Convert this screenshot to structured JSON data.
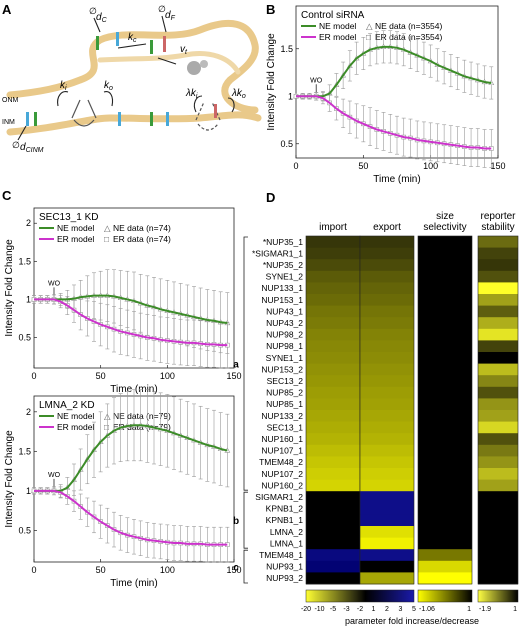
{
  "panel_letters": {
    "a": "A",
    "b": "B",
    "c": "C",
    "d": "D"
  },
  "schematic": {
    "labels": {
      "dc": "d",
      "dc_sub": "C",
      "df": "d",
      "df_sub": "F",
      "kc": "k",
      "kc_sub": "c",
      "vt": "v",
      "vt_sub": "t",
      "ki": "k",
      "ki_sub": "i",
      "ko": "k",
      "ko_sub": "o",
      "lki": "λk",
      "lki_sub": "i",
      "lko": "λk",
      "lko_sub": "o",
      "dcinm": "d",
      "dcinm_sub": "CINM",
      "onm": "ONM",
      "inm": "INM",
      "null1": "∅",
      "null2": "∅",
      "null3": "∅"
    }
  },
  "colors": {
    "ne": "#3c8c28",
    "er": "#cc33cc",
    "data": "#999999"
  },
  "chart_data": [
    {
      "type": "line",
      "id": "B",
      "title": "Control siRNA",
      "xlabel": "Time (min)",
      "ylabel": "Intensity Fold Change",
      "xlim": [
        0,
        150
      ],
      "ylim": [
        0.35,
        1.95
      ],
      "xticks": [
        0,
        50,
        100,
        150
      ],
      "yticks": [
        0.5,
        1,
        1.5
      ],
      "wo_label": "WO",
      "wo_x": 15,
      "legend": [
        "NE model",
        "NE data (n=3554)",
        "ER model",
        "ER data (n=3554)"
      ],
      "x": [
        0,
        5,
        10,
        15,
        20,
        25,
        30,
        35,
        40,
        45,
        50,
        55,
        60,
        65,
        70,
        75,
        80,
        85,
        90,
        95,
        100,
        105,
        110,
        115,
        120,
        125,
        130,
        135,
        140,
        145
      ],
      "series": [
        {
          "name": "NE model",
          "values": [
            1.0,
            1.0,
            1.0,
            1.0,
            1.0,
            1.03,
            1.12,
            1.22,
            1.32,
            1.4,
            1.45,
            1.49,
            1.51,
            1.52,
            1.52,
            1.51,
            1.49,
            1.46,
            1.43,
            1.4,
            1.37,
            1.33,
            1.3,
            1.27,
            1.24,
            1.21,
            1.19,
            1.17,
            1.15,
            1.14
          ]
        },
        {
          "name": "ER model",
          "values": [
            1.0,
            1.0,
            1.0,
            1.0,
            0.98,
            0.93,
            0.87,
            0.82,
            0.78,
            0.74,
            0.71,
            0.68,
            0.65,
            0.63,
            0.61,
            0.59,
            0.57,
            0.56,
            0.54,
            0.53,
            0.52,
            0.51,
            0.5,
            0.49,
            0.48,
            0.47,
            0.46,
            0.46,
            0.45,
            0.45
          ]
        }
      ],
      "data_x": [
        0,
        5,
        10,
        15,
        20,
        25,
        30,
        35,
        40,
        45,
        50,
        55,
        60,
        65,
        70,
        75,
        80,
        85,
        90,
        95,
        100,
        105,
        110,
        115,
        120,
        125,
        130,
        135,
        140,
        145
      ],
      "ne_err": [
        0.02,
        0.03,
        0.03,
        0.04,
        0.05,
        0.09,
        0.12,
        0.14,
        0.16,
        0.17,
        0.17,
        0.17,
        0.17,
        0.17,
        0.17,
        0.17,
        0.17,
        0.17,
        0.17,
        0.17,
        0.17,
        0.17,
        0.17,
        0.17,
        0.17,
        0.17,
        0.17,
        0.17,
        0.17,
        0.17
      ],
      "er_err": [
        0.02,
        0.03,
        0.03,
        0.04,
        0.06,
        0.09,
        0.12,
        0.15,
        0.17,
        0.18,
        0.19,
        0.2,
        0.2,
        0.2,
        0.2,
        0.2,
        0.2,
        0.2,
        0.2,
        0.2,
        0.2,
        0.2,
        0.2,
        0.2,
        0.2,
        0.2,
        0.2,
        0.2,
        0.2,
        0.2
      ]
    },
    {
      "type": "line",
      "id": "C1",
      "title": "SEC13_1 KD",
      "xlabel": "Time (min)",
      "ylabel": "Intensity Fold Change",
      "xlim": [
        0,
        150
      ],
      "ylim": [
        0.1,
        2.2
      ],
      "xticks": [
        0,
        50,
        100,
        150
      ],
      "yticks": [
        0.5,
        1,
        1.5,
        2
      ],
      "wo_label": "WO",
      "wo_x": 15,
      "legend": [
        "NE model",
        "NE data (n=74)",
        "ER model",
        "ER data (n=74)"
      ],
      "x": [
        0,
        5,
        10,
        15,
        20,
        25,
        30,
        35,
        40,
        45,
        50,
        55,
        60,
        65,
        70,
        75,
        80,
        85,
        90,
        95,
        100,
        105,
        110,
        115,
        120,
        125,
        130,
        135,
        140,
        145
      ],
      "series": [
        {
          "name": "NE model",
          "values": [
            1.0,
            1.0,
            1.0,
            1.0,
            1.0,
            1.0,
            1.01,
            1.03,
            1.04,
            1.05,
            1.05,
            1.05,
            1.04,
            1.02,
            1.0,
            0.98,
            0.95,
            0.92,
            0.9,
            0.87,
            0.85,
            0.83,
            0.81,
            0.79,
            0.77,
            0.75,
            0.73,
            0.72,
            0.7,
            0.69
          ]
        },
        {
          "name": "ER model",
          "values": [
            1.0,
            1.0,
            1.0,
            1.0,
            0.97,
            0.92,
            0.86,
            0.8,
            0.75,
            0.71,
            0.67,
            0.64,
            0.61,
            0.58,
            0.56,
            0.54,
            0.52,
            0.5,
            0.49,
            0.47,
            0.46,
            0.45,
            0.44,
            0.43,
            0.43,
            0.42,
            0.41,
            0.41,
            0.4,
            0.4
          ]
        }
      ],
      "data_x": [
        0,
        5,
        10,
        15,
        20,
        25,
        30,
        35,
        40,
        45,
        50,
        55,
        60,
        65,
        70,
        75,
        80,
        85,
        90,
        95,
        100,
        105,
        110,
        115,
        120,
        125,
        130,
        135,
        140,
        145
      ],
      "ne_err": [
        0.05,
        0.05,
        0.05,
        0.06,
        0.08,
        0.12,
        0.18,
        0.22,
        0.27,
        0.3,
        0.32,
        0.34,
        0.35,
        0.36,
        0.37,
        0.38,
        0.38,
        0.39,
        0.39,
        0.4,
        0.4,
        0.4,
        0.4,
        0.4,
        0.4,
        0.4,
        0.4,
        0.4,
        0.4,
        0.4
      ],
      "er_err": [
        0.05,
        0.05,
        0.05,
        0.06,
        0.08,
        0.12,
        0.16,
        0.2,
        0.23,
        0.26,
        0.28,
        0.29,
        0.3,
        0.3,
        0.3,
        0.3,
        0.3,
        0.3,
        0.3,
        0.3,
        0.3,
        0.3,
        0.3,
        0.3,
        0.3,
        0.3,
        0.3,
        0.3,
        0.3,
        0.3
      ]
    },
    {
      "type": "line",
      "id": "C2",
      "title": "LMNA_2 KD",
      "xlabel": "Time (min)",
      "ylabel": "Intensity Fold Change",
      "xlim": [
        0,
        150
      ],
      "ylim": [
        0.1,
        2.2
      ],
      "xticks": [
        0,
        50,
        100,
        150
      ],
      "yticks": [
        0.5,
        1,
        1.5,
        2
      ],
      "wo_label": "WO",
      "wo_x": 15,
      "legend": [
        "NE model",
        "NE data (n=79)",
        "ER model",
        "ER data (n=79)"
      ],
      "x": [
        0,
        5,
        10,
        15,
        20,
        25,
        30,
        35,
        40,
        45,
        50,
        55,
        60,
        65,
        70,
        75,
        80,
        85,
        90,
        95,
        100,
        105,
        110,
        115,
        120,
        125,
        130,
        135,
        140,
        145
      ],
      "series": [
        {
          "name": "NE model",
          "values": [
            1.0,
            1.0,
            1.0,
            1.0,
            1.0,
            1.04,
            1.14,
            1.27,
            1.4,
            1.52,
            1.62,
            1.7,
            1.76,
            1.8,
            1.82,
            1.83,
            1.83,
            1.82,
            1.8,
            1.78,
            1.76,
            1.73,
            1.7,
            1.67,
            1.64,
            1.61,
            1.58,
            1.56,
            1.53,
            1.51
          ]
        },
        {
          "name": "ER model",
          "values": [
            1.0,
            1.0,
            1.0,
            1.0,
            0.98,
            0.93,
            0.87,
            0.8,
            0.73,
            0.67,
            0.61,
            0.56,
            0.51,
            0.47,
            0.44,
            0.42,
            0.4,
            0.38,
            0.37,
            0.36,
            0.35,
            0.34,
            0.34,
            0.33,
            0.33,
            0.33,
            0.32,
            0.32,
            0.32,
            0.32
          ]
        }
      ],
      "data_x": [
        0,
        5,
        10,
        15,
        20,
        25,
        30,
        35,
        40,
        45,
        50,
        55,
        60,
        65,
        70,
        75,
        80,
        85,
        90,
        95,
        100,
        105,
        110,
        115,
        120,
        125,
        130,
        135,
        140,
        145
      ],
      "ne_err": [
        0.04,
        0.04,
        0.04,
        0.05,
        0.08,
        0.13,
        0.2,
        0.26,
        0.31,
        0.35,
        0.38,
        0.4,
        0.42,
        0.43,
        0.44,
        0.45,
        0.45,
        0.46,
        0.46,
        0.46,
        0.46,
        0.46,
        0.46,
        0.46,
        0.46,
        0.46,
        0.46,
        0.46,
        0.46,
        0.46
      ],
      "er_err": [
        0.04,
        0.04,
        0.04,
        0.05,
        0.07,
        0.1,
        0.13,
        0.16,
        0.18,
        0.2,
        0.21,
        0.22,
        0.22,
        0.22,
        0.22,
        0.22,
        0.22,
        0.22,
        0.22,
        0.22,
        0.22,
        0.22,
        0.22,
        0.22,
        0.22,
        0.22,
        0.22,
        0.22,
        0.22,
        0.22
      ]
    },
    {
      "type": "heatmap",
      "id": "D",
      "columns": [
        "import",
        "export",
        "size\nselectivity",
        "reporter\nstability"
      ],
      "rows": [
        "*NUP35_1",
        "*SIGMAR1_1",
        "*NUP35_2",
        "SYNE1_2",
        "NUP133_1",
        "NUP153_1",
        "NUP43_1",
        "NUP43_2",
        "NUP98_2",
        "NUP98_1",
        "SYNE1_1",
        "NUP153_2",
        "SEC13_2",
        "NUP85_2",
        "NUP85_1",
        "NUP133_2",
        "SEC13_1",
        "NUP160_1",
        "NUP107_1",
        "TMEM48_2",
        "NUP107_2",
        "NUP160_2",
        "SIGMAR1_2",
        "KPNB1_2",
        "KPNB1_1",
        "LMNA_2",
        "LMNA_1",
        "TMEM48_1",
        "NUP93_1",
        "NUP93_2"
      ],
      "groups": [
        {
          "label": "a",
          "from": 0,
          "to": 21
        },
        {
          "label": "b",
          "from": 22,
          "to": 26
        },
        {
          "label": "c",
          "from": 27,
          "to": 29
        }
      ],
      "scale": "signed fold change (negative = decrease, positive = increase)",
      "values": {
        "import": [
          -1.2,
          -1.3,
          -1.5,
          -1.8,
          -2.0,
          -2.2,
          -2.5,
          -2.7,
          -3.0,
          -3.2,
          -3.4,
          -3.7,
          -4.0,
          -4.3,
          -4.6,
          -5.0,
          -5.5,
          -6.0,
          -7.0,
          -8.0,
          -9.0,
          -10.0,
          1,
          1,
          1,
          1,
          1,
          2,
          1.2,
          1
        ],
        "export": [
          -1.2,
          -1.3,
          -1.5,
          -1.8,
          -2.0,
          -2.2,
          -2.5,
          -2.7,
          -3.0,
          -3.2,
          -3.4,
          -3.7,
          -4.0,
          -4.3,
          -4.6,
          -5.0,
          -5.5,
          -6.0,
          -7.0,
          -8.0,
          -9.0,
          -10.0,
          3,
          3,
          3,
          -12,
          -16,
          3,
          1,
          -5
        ],
        "size_selectivity": [
          1,
          1,
          1,
          1,
          1,
          1,
          1,
          1,
          1,
          1,
          1,
          1,
          1,
          1,
          1,
          1,
          1,
          1,
          1,
          1,
          1,
          1,
          1,
          1,
          1,
          1,
          1,
          -0.5,
          -0.9,
          -1.06
        ],
        "reporter_stability": [
          -0.8,
          -0.5,
          -0.4,
          -0.6,
          -1.9,
          -1.2,
          -0.7,
          -1.3,
          -1.7,
          -0.5,
          1,
          -1.4,
          -1.0,
          -0.6,
          -1.1,
          -1.2,
          -1.6,
          -0.6,
          -0.9,
          -1.1,
          -1.4,
          -1.2,
          1,
          1,
          1,
          1,
          1,
          1,
          1,
          1
        ]
      },
      "colorbars": [
        {
          "ticks": [
            "-20",
            "-10",
            "-5",
            "-3",
            "-2",
            "1",
            "2",
            "3",
            "5"
          ]
        },
        {
          "ticks": [
            "-1.06",
            "1"
          ]
        },
        {
          "ticks": [
            "-1.9",
            "1"
          ]
        }
      ],
      "caption": "parameter fold increase/decrease"
    }
  ]
}
